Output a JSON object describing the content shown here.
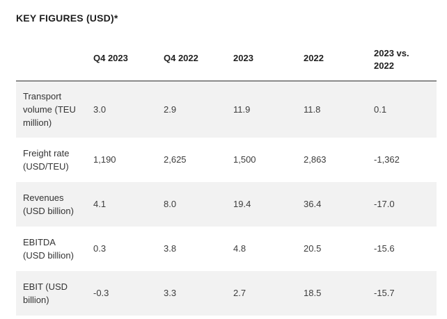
{
  "title": "KEY FIGURES (USD)*",
  "table": {
    "headers": [
      "",
      "Q4 2023",
      "Q4 2022",
      "2023",
      "2022",
      "2023 vs. 2022"
    ],
    "rows": [
      {
        "label": "Transport volume (TEU million)",
        "values": [
          "3.0",
          "2.9",
          "11.9",
          "11.8",
          "0.1"
        ]
      },
      {
        "label": "Freight rate (USD/TEU)",
        "values": [
          "1,190",
          "2,625",
          "1,500",
          "2,863",
          "-1,362"
        ]
      },
      {
        "label": "Revenues (USD billion)",
        "values": [
          "4.1",
          "8.0",
          "19.4",
          "36.4",
          "-17.0"
        ]
      },
      {
        "label": "EBITDA (USD billion)",
        "values": [
          "0.3",
          "3.8",
          "4.8",
          "20.5",
          "-15.6"
        ]
      },
      {
        "label": "EBIT (USD billion)",
        "values": [
          "-0.3",
          "3.3",
          "2.7",
          "18.5",
          "-15.7"
        ]
      }
    ]
  },
  "colors": {
    "stripe": "#f2f2f2",
    "header_rule": "#2a2a2a",
    "text": "#333333"
  }
}
